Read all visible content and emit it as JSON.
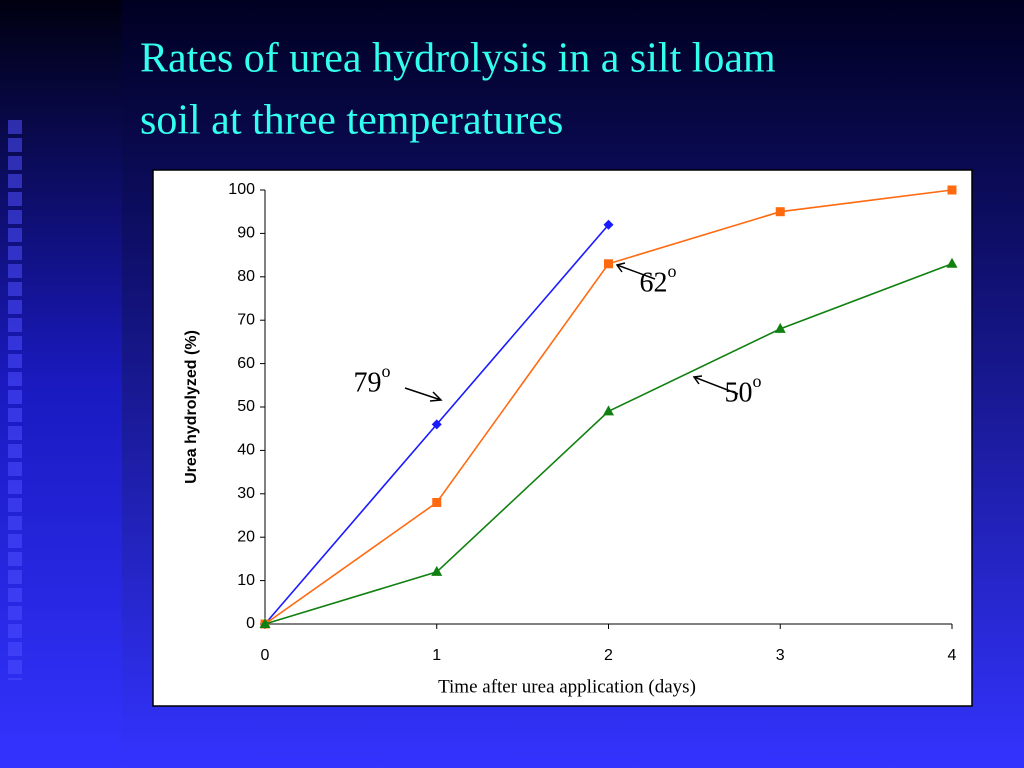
{
  "chart_data": {
    "type": "line",
    "title_lines": [
      "Rates of urea hydrolysis in a silt loam",
      "soil at three temperatures"
    ],
    "x_label": "Time after urea application (days)",
    "y_label": "Urea hydrolyzed (%)",
    "x": [
      0,
      1,
      2,
      3,
      4
    ],
    "xlim": [
      0,
      4
    ],
    "xticks": [
      0,
      1,
      2,
      3,
      4
    ],
    "ylim": [
      0,
      100
    ],
    "yticks": [
      0,
      10,
      20,
      30,
      40,
      50,
      60,
      70,
      80,
      90,
      100
    ],
    "grid": false,
    "series": [
      {
        "label": "79",
        "label_sup": "o",
        "color": "#1a1aff",
        "marker": "diamond",
        "values": [
          0,
          46,
          92,
          null,
          null
        ]
      },
      {
        "label": "62",
        "label_sup": "o",
        "color": "#ff6a10",
        "marker": "square",
        "values": [
          0,
          28,
          83,
          95,
          100
        ]
      },
      {
        "label": "50",
        "label_sup": "o",
        "color": "#108010",
        "marker": "triangle",
        "values": [
          0,
          12,
          49,
          68,
          83
        ]
      }
    ]
  }
}
